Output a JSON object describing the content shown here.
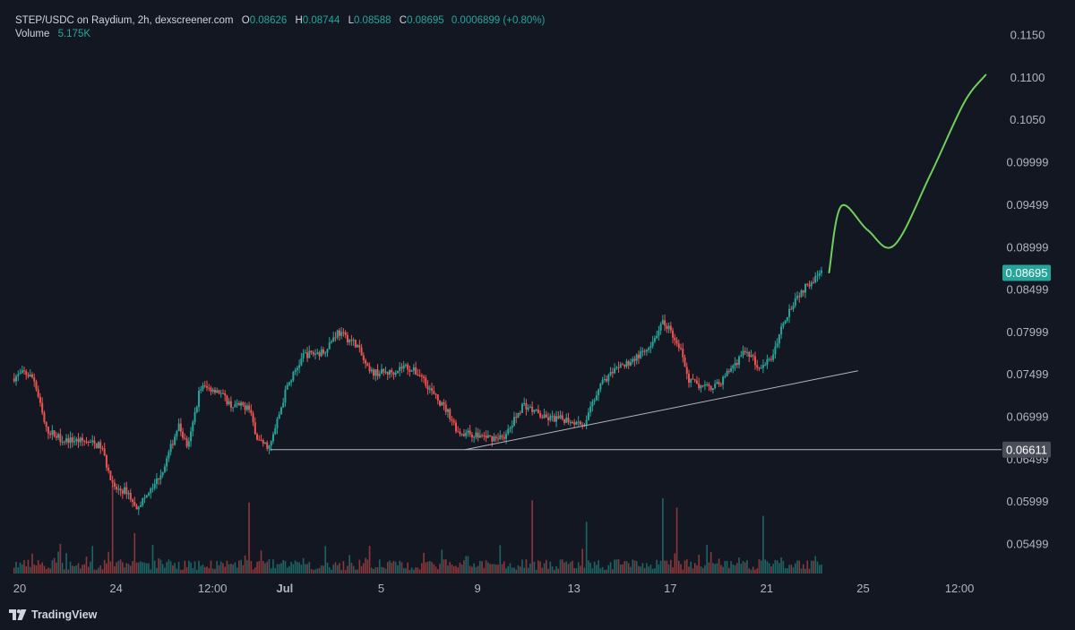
{
  "legend": {
    "symbol": "STEP/USDC on Raydium, 2h, dexscreener.com",
    "open_label": "O",
    "open": "0.08626",
    "high_label": "H",
    "high": "0.08744",
    "low_label": "L",
    "low": "0.08588",
    "close_label": "C",
    "close": "0.08695",
    "change": "0.0006899 (+0.80%)",
    "volume_label": "Volume",
    "volume": "5.175K"
  },
  "footer": {
    "brand": "TradingView",
    "logo_icon": "tradingview-logo-icon"
  },
  "colors": {
    "background": "#131722",
    "up": "#26a69a",
    "down": "#ef5350",
    "projection": "#6fcf5c",
    "trendline": "#b2b5be",
    "price_label": "#26a69a",
    "support_label": "#4a4e58"
  },
  "chart_data": {
    "type": "candlestick",
    "title": "STEP/USDC on Raydium, 2h, dexscreener.com",
    "y_axis": {
      "side": "right",
      "ticks": [
        "0.1150",
        "0.1100",
        "0.1050",
        "0.09999",
        "0.09499",
        "0.08999",
        "0.08499",
        "0.07999",
        "0.07499",
        "0.06999",
        "0.06499",
        "0.05999",
        "0.05499"
      ],
      "range": [
        0.0514,
        0.1168
      ]
    },
    "x_axis": {
      "ticks": [
        "20",
        "24",
        "12:00",
        "Jul",
        "5",
        "9",
        "13",
        "17",
        "21",
        "25",
        "12:00"
      ],
      "bold_ticks": [
        "Jul"
      ]
    },
    "grid": false,
    "price_path": {
      "description": "Approximate close-price path of the 2h candles (x in day index from Jun 20)",
      "points": [
        {
          "x": -0.5,
          "y": 0.0745
        },
        {
          "x": 0.0,
          "y": 0.0752
        },
        {
          "x": 0.4,
          "y": 0.0745
        },
        {
          "x": 0.9,
          "y": 0.0685
        },
        {
          "x": 1.6,
          "y": 0.0673
        },
        {
          "x": 2.5,
          "y": 0.0671
        },
        {
          "x": 3.2,
          "y": 0.0665
        },
        {
          "x": 3.7,
          "y": 0.0615
        },
        {
          "x": 4.3,
          "y": 0.0612
        },
        {
          "x": 4.6,
          "y": 0.0592
        },
        {
          "x": 5.2,
          "y": 0.061
        },
        {
          "x": 5.8,
          "y": 0.064
        },
        {
          "x": 6.4,
          "y": 0.069
        },
        {
          "x": 6.8,
          "y": 0.0663
        },
        {
          "x": 7.3,
          "y": 0.0735
        },
        {
          "x": 8.0,
          "y": 0.0732
        },
        {
          "x": 8.6,
          "y": 0.0713
        },
        {
          "x": 9.3,
          "y": 0.0712
        },
        {
          "x": 9.7,
          "y": 0.0672
        },
        {
          "x": 10.2,
          "y": 0.0664
        },
        {
          "x": 10.9,
          "y": 0.0735
        },
        {
          "x": 11.6,
          "y": 0.0773
        },
        {
          "x": 12.4,
          "y": 0.0776
        },
        {
          "x": 13.0,
          "y": 0.08
        },
        {
          "x": 13.8,
          "y": 0.0785
        },
        {
          "x": 14.3,
          "y": 0.0752
        },
        {
          "x": 15.2,
          "y": 0.0752
        },
        {
          "x": 15.8,
          "y": 0.076
        },
        {
          "x": 16.5,
          "y": 0.0748
        },
        {
          "x": 17.0,
          "y": 0.0725
        },
        {
          "x": 17.6,
          "y": 0.0705
        },
        {
          "x": 18.0,
          "y": 0.0682
        },
        {
          "x": 18.6,
          "y": 0.0679
        },
        {
          "x": 19.4,
          "y": 0.0675
        },
        {
          "x": 20.0,
          "y": 0.0678
        },
        {
          "x": 20.7,
          "y": 0.0715
        },
        {
          "x": 21.6,
          "y": 0.0698
        },
        {
          "x": 22.5,
          "y": 0.0697
        },
        {
          "x": 23.3,
          "y": 0.0692
        },
        {
          "x": 23.9,
          "y": 0.074
        },
        {
          "x": 24.7,
          "y": 0.0757
        },
        {
          "x": 25.4,
          "y": 0.077
        },
        {
          "x": 26.0,
          "y": 0.078
        },
        {
          "x": 26.5,
          "y": 0.0813
        },
        {
          "x": 27.1,
          "y": 0.079
        },
        {
          "x": 27.6,
          "y": 0.0742
        },
        {
          "x": 28.2,
          "y": 0.0734
        },
        {
          "x": 28.8,
          "y": 0.0737
        },
        {
          "x": 29.4,
          "y": 0.076
        },
        {
          "x": 30.0,
          "y": 0.0778
        },
        {
          "x": 30.5,
          "y": 0.0757
        },
        {
          "x": 31.0,
          "y": 0.0768
        },
        {
          "x": 31.5,
          "y": 0.0812
        },
        {
          "x": 32.0,
          "y": 0.084
        },
        {
          "x": 32.6,
          "y": 0.0858
        },
        {
          "x": 33.1,
          "y": 0.087
        }
      ]
    },
    "projection_path": {
      "description": "Hand-drawn green projection line",
      "points": [
        {
          "x": 33.4,
          "y": 0.087
        },
        {
          "x": 33.9,
          "y": 0.0948
        },
        {
          "x": 35.0,
          "y": 0.092
        },
        {
          "x": 36.1,
          "y": 0.0902
        },
        {
          "x": 37.6,
          "y": 0.0985
        },
        {
          "x": 39.0,
          "y": 0.107
        },
        {
          "x": 39.9,
          "y": 0.1103
        }
      ]
    },
    "trendlines": [
      {
        "type": "horizontal",
        "price": 0.06611,
        "from_x": 10.2,
        "label": "0.06611"
      },
      {
        "type": "rising",
        "x1": 18.3,
        "y1": 0.06611,
        "x2": 34.6,
        "y2": 0.07541
      }
    ],
    "last_price": {
      "value": 0.08695,
      "label": "0.08695"
    },
    "volume": {
      "value": "5.175K"
    }
  }
}
